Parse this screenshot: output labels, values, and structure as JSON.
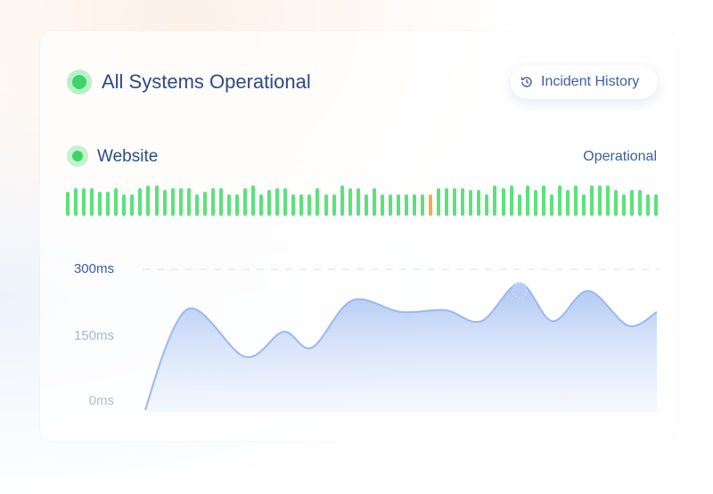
{
  "header": {
    "title": "All Systems Operational",
    "status_color": "#3fd46a",
    "incident_button": {
      "label": "Incident History",
      "icon": "history-icon"
    }
  },
  "service": {
    "name": "Website",
    "status": "Operational",
    "colors": {
      "up": "#5ee07c",
      "degraded": "#f0ad4e"
    },
    "uptime_bars": [
      {
        "s": "up",
        "h": 0.8
      },
      {
        "s": "up",
        "h": 0.9
      },
      {
        "s": "up",
        "h": 0.9
      },
      {
        "s": "up",
        "h": 0.9
      },
      {
        "s": "up",
        "h": 0.8
      },
      {
        "s": "up",
        "h": 0.8
      },
      {
        "s": "up",
        "h": 0.9
      },
      {
        "s": "up",
        "h": 0.7
      },
      {
        "s": "up",
        "h": 0.7
      },
      {
        "s": "up",
        "h": 0.9
      },
      {
        "s": "up",
        "h": 1
      },
      {
        "s": "up",
        "h": 1
      },
      {
        "s": "up",
        "h": 0.85
      },
      {
        "s": "up",
        "h": 0.9
      },
      {
        "s": "up",
        "h": 0.9
      },
      {
        "s": "up",
        "h": 0.9
      },
      {
        "s": "up",
        "h": 0.7
      },
      {
        "s": "up",
        "h": 0.8
      },
      {
        "s": "up",
        "h": 0.9
      },
      {
        "s": "up",
        "h": 0.9
      },
      {
        "s": "up",
        "h": 0.7
      },
      {
        "s": "up",
        "h": 0.7
      },
      {
        "s": "up",
        "h": 0.9
      },
      {
        "s": "up",
        "h": 1
      },
      {
        "s": "up",
        "h": 0.7
      },
      {
        "s": "up",
        "h": 0.85
      },
      {
        "s": "up",
        "h": 0.9
      },
      {
        "s": "up",
        "h": 0.9
      },
      {
        "s": "up",
        "h": 0.7
      },
      {
        "s": "up",
        "h": 0.7
      },
      {
        "s": "up",
        "h": 0.7
      },
      {
        "s": "up",
        "h": 0.9
      },
      {
        "s": "up",
        "h": 0.7
      },
      {
        "s": "up",
        "h": 0.7
      },
      {
        "s": "up",
        "h": 1
      },
      {
        "s": "up",
        "h": 0.9
      },
      {
        "s": "up",
        "h": 0.9
      },
      {
        "s": "up",
        "h": 0.7
      },
      {
        "s": "up",
        "h": 0.9
      },
      {
        "s": "up",
        "h": 0.7
      },
      {
        "s": "up",
        "h": 0.7
      },
      {
        "s": "up",
        "h": 0.7
      },
      {
        "s": "up",
        "h": 0.7
      },
      {
        "s": "up",
        "h": 0.7
      },
      {
        "s": "up",
        "h": 0.7
      },
      {
        "s": "degraded",
        "h": 0.7
      },
      {
        "s": "up",
        "h": 0.9
      },
      {
        "s": "up",
        "h": 0.9
      },
      {
        "s": "up",
        "h": 0.9
      },
      {
        "s": "up",
        "h": 0.9
      },
      {
        "s": "up",
        "h": 0.85
      },
      {
        "s": "up",
        "h": 0.85
      },
      {
        "s": "up",
        "h": 0.7
      },
      {
        "s": "up",
        "h": 1
      },
      {
        "s": "up",
        "h": 0.9
      },
      {
        "s": "up",
        "h": 1
      },
      {
        "s": "up",
        "h": 0.7
      },
      {
        "s": "up",
        "h": 1
      },
      {
        "s": "up",
        "h": 0.85
      },
      {
        "s": "up",
        "h": 1
      },
      {
        "s": "up",
        "h": 0.7
      },
      {
        "s": "up",
        "h": 1
      },
      {
        "s": "up",
        "h": 0.85
      },
      {
        "s": "up",
        "h": 1
      },
      {
        "s": "up",
        "h": 0.7
      },
      {
        "s": "up",
        "h": 1
      },
      {
        "s": "up",
        "h": 1
      },
      {
        "s": "up",
        "h": 1
      },
      {
        "s": "up",
        "h": 0.85
      },
      {
        "s": "up",
        "h": 0.7
      },
      {
        "s": "up",
        "h": 0.85
      },
      {
        "s": "up",
        "h": 0.85
      },
      {
        "s": "up",
        "h": 0.7
      },
      {
        "s": "up",
        "h": 0.7
      }
    ]
  },
  "chart_data": {
    "type": "area",
    "y_ticks": [
      "300ms",
      "150ms",
      "0ms"
    ],
    "y_tick_values": [
      300,
      150,
      0
    ],
    "ylim": [
      0,
      300
    ],
    "grid": "dashed line at 300ms",
    "color": "#8fb0ee",
    "values": [
      -20,
      209,
      101,
      158,
      122,
      229,
      203,
      207,
      182,
      268,
      182,
      251,
      172,
      203
    ],
    "highlight_index": 9
  }
}
